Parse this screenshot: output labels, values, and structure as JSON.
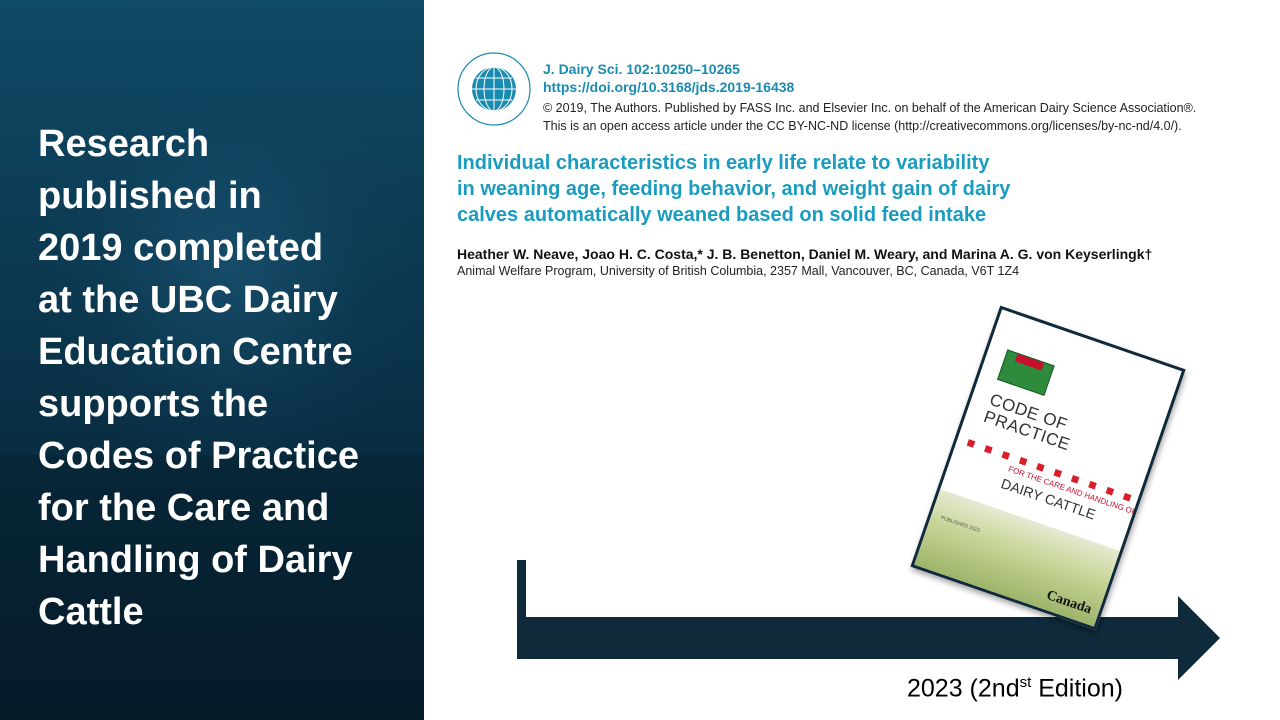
{
  "left_panel": {
    "text": "Research\npublished in\n2019 completed\nat the UBC Dairy\nEducation Centre\nsupports the\nCodes of Practice\nfor the Care and\nHandling of Dairy\nCattle"
  },
  "article": {
    "logo_icon": "american-dairy-science-association-logo",
    "journal": "J. Dairy Sci. 102:10250–10265",
    "doi": "https://doi.org/10.3168/jds.2019-16438",
    "copyright": "© 2019, The Authors. Published by FASS Inc. and Elsevier Inc. on behalf of the American Dairy Science Association®.",
    "license": "This is an open access article under the CC BY-NC-ND license (http://creativecommons.org/licenses/by-nc-nd/4.0/).",
    "title": "Individual characteristics in early life relate to variability\nin weaning age, feeding behavior, and weight gain of dairy\ncalves automatically weaned based on solid feed intake",
    "authors": "Heather W. Neave, Joao H. C. Costa,* J. B. Benetton, Daniel M. Weary, and Marina A. G. von Keyserlingk†",
    "affiliation": "Animal Welfare Program, University of British Columbia, 2357 Mall, Vancouver, BC, Canada, V6T 1Z4"
  },
  "booklet": {
    "code_title": "CODE OF\nPRACTICE",
    "subtitle_small": "FOR THE CARE AND HANDLING OF",
    "subtitle": "DAIRY CATTLE",
    "publication": "PUBLISHED 2023",
    "wordmark": "Canada"
  },
  "timeline": {
    "label_prefix": "2023 (2nd",
    "label_sup": "st",
    "label_suffix": " Edition)",
    "color": "#0f2a3a"
  }
}
